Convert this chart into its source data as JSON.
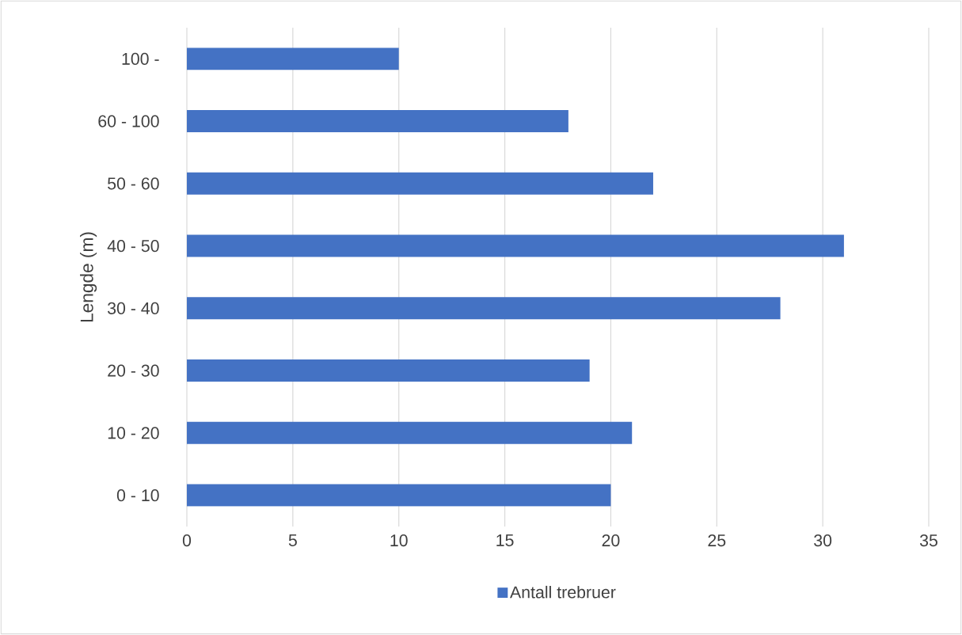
{
  "chart_data": {
    "type": "bar",
    "orientation": "horizontal",
    "ylabel": "Lengde (m)",
    "categories": [
      "100 -",
      "60 - 100",
      "50 - 60",
      "40 - 50",
      "30 - 40",
      "20 - 30",
      "10 - 20",
      "0 - 10"
    ],
    "series": [
      {
        "name": "Antall trebruer",
        "color": "#4472c4",
        "values": [
          10,
          18,
          22,
          31,
          28,
          19,
          21,
          20
        ]
      }
    ],
    "xlim": [
      0,
      35
    ],
    "xticks": [
      0,
      5,
      10,
      15,
      20,
      25,
      30,
      35
    ],
    "grid": "x",
    "legend": "bottom"
  }
}
